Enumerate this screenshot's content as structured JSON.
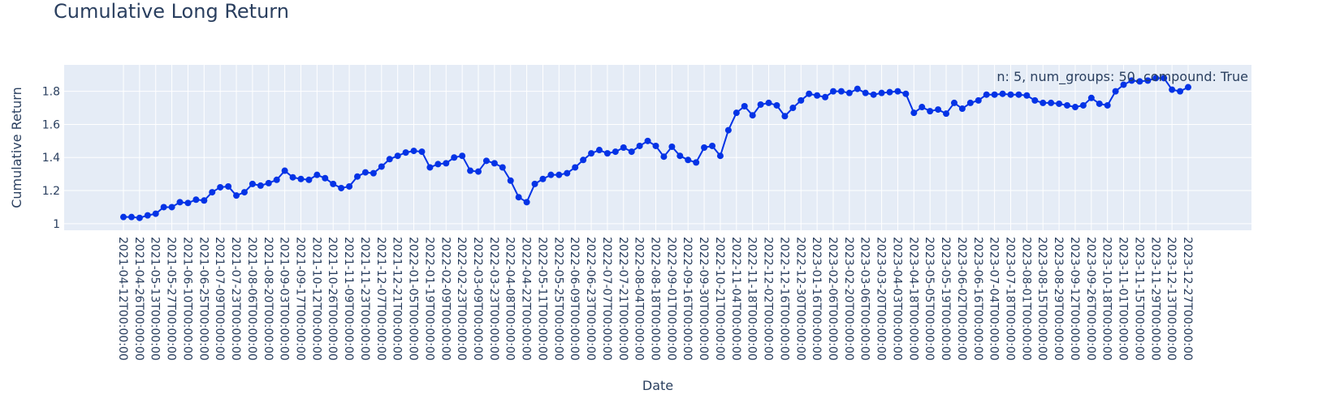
{
  "chart_data": {
    "type": "line",
    "title": "Cumulative Long Return",
    "xlabel": "Date",
    "ylabel": "Cumulative Return",
    "annotation": "n: 5, num_groups: 50, compound: True",
    "ylim": [
      0.96,
      1.96
    ],
    "y_ticks": [
      1,
      1.2,
      1.4,
      1.6,
      1.8
    ],
    "y_tick_labels": [
      "1",
      "1.2",
      "1.4",
      "1.6",
      "1.8"
    ],
    "grid": true,
    "colors": {
      "line": "#0433e6",
      "plot_bg": "#e5ecf6",
      "grid": "#ffffff",
      "text": "#2a3f5f"
    },
    "x_tick_labels": [
      "2021-04-12T00:00:00",
      "2021-04-26T00:00:00",
      "2021-05-13T00:00:00",
      "2021-05-27T00:00:00",
      "2021-06-10T00:00:00",
      "2021-06-25T00:00:00",
      "2021-07-09T00:00:00",
      "2021-07-23T00:00:00",
      "2021-08-06T00:00:00",
      "2021-08-20T00:00:00",
      "2021-09-03T00:00:00",
      "2021-09-17T00:00:00",
      "2021-10-12T00:00:00",
      "2021-10-26T00:00:00",
      "2021-11-09T00:00:00",
      "2021-11-23T00:00:00",
      "2021-12-07T00:00:00",
      "2021-12-21T00:00:00",
      "2022-01-05T00:00:00",
      "2022-01-19T00:00:00",
      "2022-02-09T00:00:00",
      "2022-02-23T00:00:00",
      "2022-03-09T00:00:00",
      "2022-03-23T00:00:00",
      "2022-04-08T00:00:00",
      "2022-04-22T00:00:00",
      "2022-05-11T00:00:00",
      "2022-05-25T00:00:00",
      "2022-06-09T00:00:00",
      "2022-06-23T00:00:00",
      "2022-07-07T00:00:00",
      "2022-07-21T00:00:00",
      "2022-08-04T00:00:00",
      "2022-08-18T00:00:00",
      "2022-09-01T00:00:00",
      "2022-09-16T00:00:00",
      "2022-09-30T00:00:00",
      "2022-10-21T00:00:00",
      "2022-11-04T00:00:00",
      "2022-11-18T00:00:00",
      "2022-12-02T00:00:00",
      "2022-12-16T00:00:00",
      "2022-12-30T00:00:00",
      "2023-01-16T00:00:00",
      "2023-02-06T00:00:00",
      "2023-02-20T00:00:00",
      "2023-03-06T00:00:00",
      "2023-03-20T00:00:00",
      "2023-04-03T00:00:00",
      "2023-04-18T00:00:00",
      "2023-05-05T00:00:00",
      "2023-05-19T00:00:00",
      "2023-06-02T00:00:00",
      "2023-06-16T00:00:00",
      "2023-07-04T00:00:00",
      "2023-07-18T00:00:00",
      "2023-08-01T00:00:00",
      "2023-08-15T00:00:00",
      "2023-08-29T00:00:00",
      "2023-09-12T00:00:00",
      "2023-09-26T00:00:00",
      "2023-10-18T00:00:00",
      "2023-11-01T00:00:00",
      "2023-11-15T00:00:00",
      "2023-11-29T00:00:00",
      "2023-12-13T00:00:00",
      "2023-12-27T00:00:00"
    ],
    "series": [
      {
        "values": [
          1.04,
          1.04,
          1.035,
          1.05,
          1.06,
          1.1,
          1.1,
          1.13,
          1.125,
          1.145,
          1.14,
          1.19,
          1.22,
          1.225,
          1.17,
          1.19,
          1.24,
          1.23,
          1.245,
          1.265,
          1.32,
          1.28,
          1.27,
          1.265,
          1.295,
          1.275,
          1.24,
          1.215,
          1.225,
          1.285,
          1.31,
          1.305,
          1.345,
          1.39,
          1.41,
          1.43,
          1.44,
          1.435,
          1.34,
          1.36,
          1.365,
          1.4,
          1.41,
          1.32,
          1.315,
          1.38,
          1.365,
          1.34,
          1.26,
          1.16,
          1.13,
          1.24,
          1.27,
          1.295,
          1.295,
          1.305,
          1.34,
          1.385,
          1.425,
          1.445,
          1.425,
          1.435,
          1.46,
          1.435,
          1.47,
          1.5,
          1.47,
          1.405,
          1.465,
          1.41,
          1.385,
          1.37,
          1.46,
          1.47,
          1.41,
          1.565,
          1.67,
          1.71,
          1.655,
          1.72,
          1.73,
          1.715,
          1.65,
          1.7,
          1.745,
          1.785,
          1.775,
          1.765,
          1.8,
          1.8,
          1.79,
          1.815,
          1.79,
          1.78,
          1.79,
          1.795,
          1.8,
          1.785,
          1.67,
          1.705,
          1.68,
          1.69,
          1.665,
          1.73,
          1.695,
          1.73,
          1.745,
          1.78,
          1.78,
          1.785,
          1.78,
          1.78,
          1.775,
          1.745,
          1.73,
          1.73,
          1.725,
          1.715,
          1.705,
          1.715,
          1.76,
          1.725,
          1.715,
          1.8,
          1.84,
          1.865,
          1.86,
          1.865,
          1.88,
          1.88,
          1.81,
          1.8,
          1.825
        ]
      }
    ]
  }
}
